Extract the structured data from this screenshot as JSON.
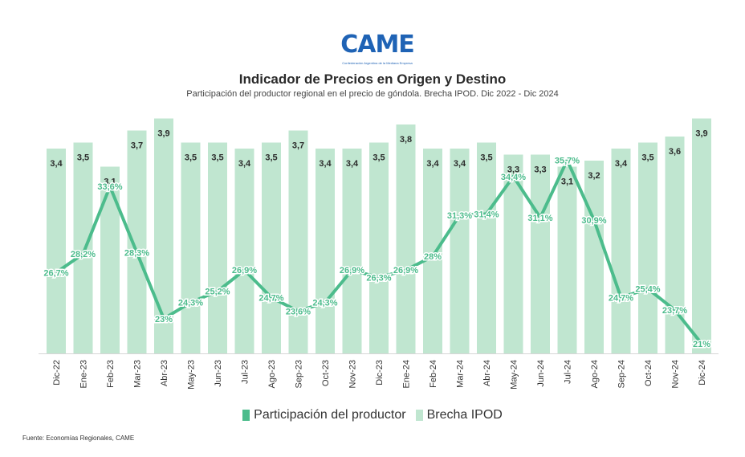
{
  "logo": {
    "word": "CAME",
    "sub": "Confederación Argentina de la Mediana Empresa"
  },
  "title": "Indicador de Precios en Origen y Destino",
  "subtitle": "Participación del productor regional en el precio de góndola. Brecha IPOD. Dic 2022 - Dic 2024",
  "source": "Fuente: Economías Regionales, CAME",
  "colors": {
    "bar": "#c0e6d0",
    "line": "#4cbc8c",
    "text": "#2b2b2b"
  },
  "chart_data": {
    "type": "bar+line",
    "categories": [
      "Dic-22",
      "Ene-23",
      "Feb-23",
      "Mar-23",
      "Abr-23",
      "May-23",
      "Jun-23",
      "Jul-23",
      "Ago-23",
      "Sep-23",
      "Oct-23",
      "Nov-23",
      "Dic-23",
      "Ene-24",
      "Feb-24",
      "Mar-24",
      "Abr-24",
      "May-24",
      "Jun-24",
      "Jul-24",
      "Ago-24",
      "Sep-24",
      "Oct-24",
      "Nov-24",
      "Dic-24"
    ],
    "series": [
      {
        "name": "Brecha IPOD",
        "type": "bar",
        "values": [
          3.4,
          3.5,
          3.1,
          3.7,
          3.9,
          3.5,
          3.5,
          3.4,
          3.5,
          3.7,
          3.4,
          3.4,
          3.5,
          3.8,
          3.4,
          3.4,
          3.5,
          3.3,
          3.3,
          3.1,
          3.2,
          3.4,
          3.5,
          3.6,
          3.9
        ],
        "labels": [
          "3,4",
          "3,5",
          "3,1",
          "3,7",
          "3,9",
          "3,5",
          "3,5",
          "3,4",
          "3,5",
          "3,7",
          "3,4",
          "3,4",
          "3,5",
          "3,8",
          "3,4",
          "3,4",
          "3,5",
          "3,3",
          "3,3",
          "3,1",
          "3,2",
          "3,4",
          "3,5",
          "3,6",
          "3,9"
        ]
      },
      {
        "name": "Participación del productor",
        "type": "line",
        "values": [
          26.7,
          28.2,
          33.6,
          28.3,
          23,
          24.3,
          25.2,
          26.9,
          24.7,
          23.6,
          24.3,
          26.9,
          26.3,
          26.9,
          28,
          31.3,
          31.4,
          34.4,
          31.1,
          35.7,
          30.9,
          24.7,
          25.4,
          23.7,
          21
        ],
        "labels": [
          "26,7%",
          "28,2%",
          "33,6%",
          "28,3%",
          "23%",
          "24,3%",
          "25,2%",
          "26,9%",
          "24,7%",
          "23,6%",
          "24,3%",
          "26,9%",
          "26,3%",
          "26,9%",
          "28%",
          "31,3%",
          "31,4%",
          "34,4%",
          "31,1%",
          "35,7%",
          "30,9%",
          "24,7%",
          "25,4%",
          "23,7%",
          "21%"
        ]
      }
    ],
    "legend": "bottom",
    "grid": false
  }
}
